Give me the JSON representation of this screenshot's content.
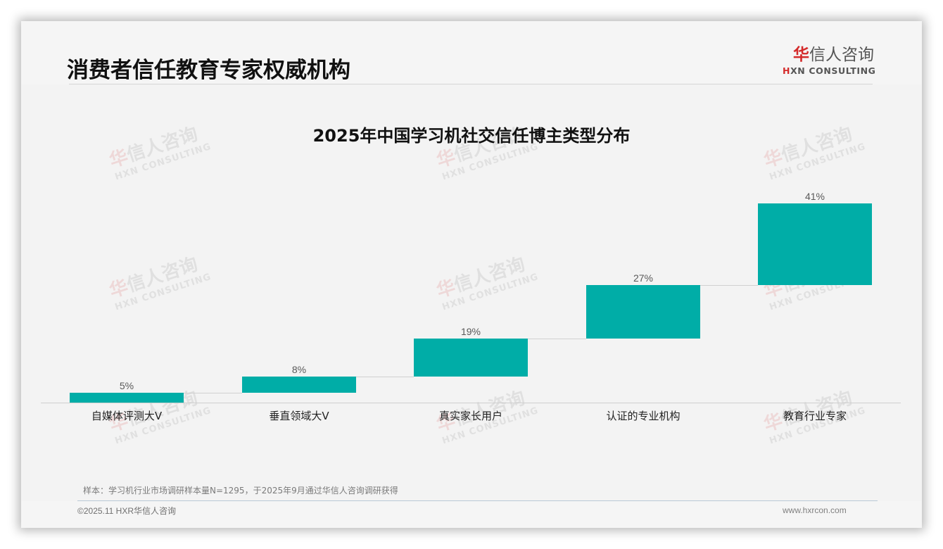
{
  "header": {
    "title": "消费者信任教育专家权威机构",
    "logo": {
      "cn_first": "华",
      "cn_rest": "信人咨询",
      "en_first": "H",
      "en_rest": "XN CONSULTING"
    }
  },
  "watermark": {
    "cn_first": "华",
    "cn_rest": "信人咨询",
    "en": "HXN CONSULTING"
  },
  "chart_data": {
    "type": "bar",
    "subtype": "waterfall",
    "title": "2025年中国学习机社交信任博主类型分布",
    "categories": [
      "自媒体评测大V",
      "垂直领域大V",
      "真实家长用户",
      "认证的专业机构",
      "教育行业专家"
    ],
    "values": [
      5,
      8,
      19,
      27,
      41
    ],
    "value_labels": [
      "5%",
      "8%",
      "19%",
      "27%",
      "41%"
    ],
    "cumulative": [
      5,
      13,
      32,
      59,
      100
    ],
    "unit": "%",
    "xlabel": "",
    "ylabel": "",
    "ylim": [
      0,
      100
    ],
    "grid": false,
    "legend": null,
    "bar_color": "#00ada7",
    "connector_lines": true
  },
  "footer": {
    "note": "样本：学习机行业市场调研样本量N=1295，于2025年9月通过华信人咨询调研获得",
    "copyright": "©2025.11 HXR华信人咨询",
    "website": "www.hxrcon.com"
  }
}
